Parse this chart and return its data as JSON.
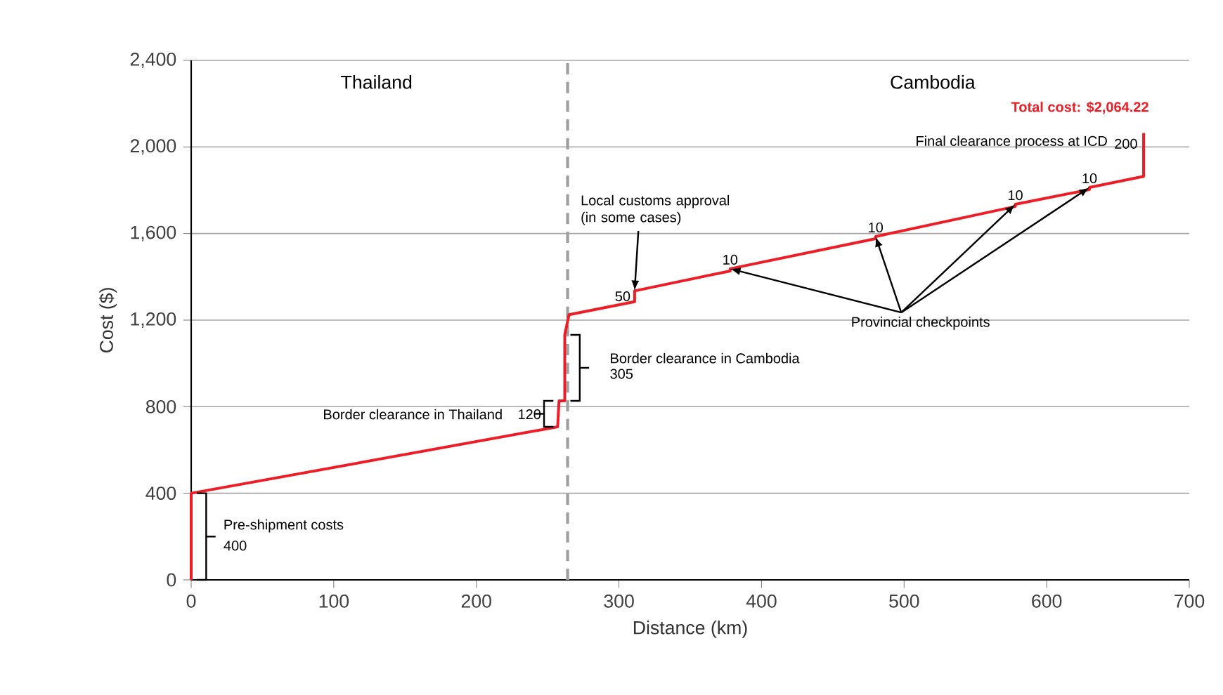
{
  "chart_data": {
    "type": "line",
    "xlabel": "Distance (km)",
    "ylabel": "Cost ($)",
    "xlim": [
      0,
      700
    ],
    "ylim": [
      0,
      2400
    ],
    "xticks": [
      0,
      100,
      200,
      300,
      400,
      500,
      600,
      700
    ],
    "yticks": [
      0,
      {
        "value": 400,
        "label": "400"
      },
      {
        "value": 800,
        "label": "800"
      },
      {
        "value": 1200,
        "label": "1,200"
      },
      {
        "value": 1600,
        "label": "1,600"
      },
      {
        "value": 2000,
        "label": "2,000"
      },
      {
        "value": 2400,
        "label": "2,400"
      }
    ],
    "grid": "y",
    "marker": "none",
    "line_style": "solid",
    "series": [
      {
        "color": "#ee1c25",
        "x": [
          0,
          0,
          257,
          258,
          262,
          262,
          265,
          311,
          311,
          378,
          378,
          480,
          480,
          578,
          578,
          630,
          630,
          668,
          668
        ],
        "values": [
          0,
          400,
          707,
          827,
          827,
          1132,
          1225,
          1285,
          1335,
          1427,
          1437,
          1576,
          1586,
          1725,
          1735,
          1803,
          1813,
          1864,
          2064
        ]
      }
    ],
    "ref_lines": [
      {
        "axis": "x",
        "value": 264,
        "color": "#a0a0a0",
        "line_style": "dashed"
      }
    ],
    "annotations": [
      "Thailand",
      "Cambodia",
      {
        "text": "Total cost: $2,064.22",
        "x": 668,
        "y": 2064
      },
      {
        "text": "Final clearance process at ICD",
        "x": 668,
        "y": 1964
      },
      {
        "text": "200",
        "x": 668,
        "y": 1964
      },
      {
        "text": "Local customs approval (in some cases)",
        "x": 311,
        "y": 1335
      },
      {
        "text": "50",
        "x": 311,
        "y": 1310
      },
      {
        "text": "10",
        "x": 378,
        "y": 1437
      },
      {
        "text": "10",
        "x": 480,
        "y": 1586
      },
      {
        "text": "10",
        "x": 578,
        "y": 1735
      },
      {
        "text": "10",
        "x": 630,
        "y": 1813
      },
      {
        "text": "Provincial checkpoints",
        "x": 378,
        "y": 1437
      },
      "Border clearance in Cambodia",
      "305",
      "Border clearance in Thailand",
      "120",
      {
        "text": "Pre-shipment costs",
        "x": 0,
        "y": 200
      },
      {
        "text": "400",
        "x": 0,
        "y": 200
      }
    ]
  }
}
